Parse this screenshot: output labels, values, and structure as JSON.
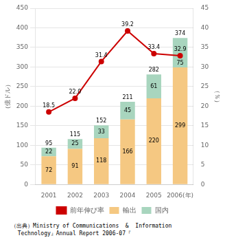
{
  "chart_data": {
    "type": "bar",
    "categories": [
      "2001",
      "2002",
      "2003",
      "2004",
      "2005",
      "2006(年)"
    ],
    "series": [
      {
        "name": "輸出",
        "color": "#F5C882",
        "values": [
          72,
          91,
          118,
          166,
          220,
          299
        ],
        "data_labels": true
      },
      {
        "name": "国内",
        "color": "#A8D5BE",
        "values": [
          22,
          25,
          33,
          45,
          61,
          75
        ],
        "data_labels": true
      },
      {
        "name": "前年伸び率",
        "type": "line",
        "color": "#CC0000",
        "marker": "circle",
        "axis": "y2",
        "values": [
          18.5,
          22.0,
          31.4,
          39.2,
          33.4,
          32.9
        ],
        "value_labels": [
          "18.5",
          "22.0",
          "31.4",
          "39.2",
          "33.4",
          "32.9"
        ],
        "data_labels": true
      }
    ],
    "totals": [
      95,
      115,
      152,
      211,
      282,
      374
    ],
    "stacked": true,
    "ylim": [
      0,
      450
    ],
    "yticks": [
      0,
      50,
      100,
      150,
      200,
      250,
      300,
      350,
      400,
      450
    ],
    "y2lim": [
      0,
      45
    ],
    "y2ticks": [
      0,
      5,
      10,
      15,
      20,
      25,
      30,
      35,
      40,
      45
    ],
    "ylabel": "（億ドル）",
    "y2label": "（％）",
    "grid": true,
    "legend": "bottom",
    "source": [
      "（出典）Ministry of Communications  &  Information",
      "  Technology』Annual Report 2006-07『"
    ]
  }
}
